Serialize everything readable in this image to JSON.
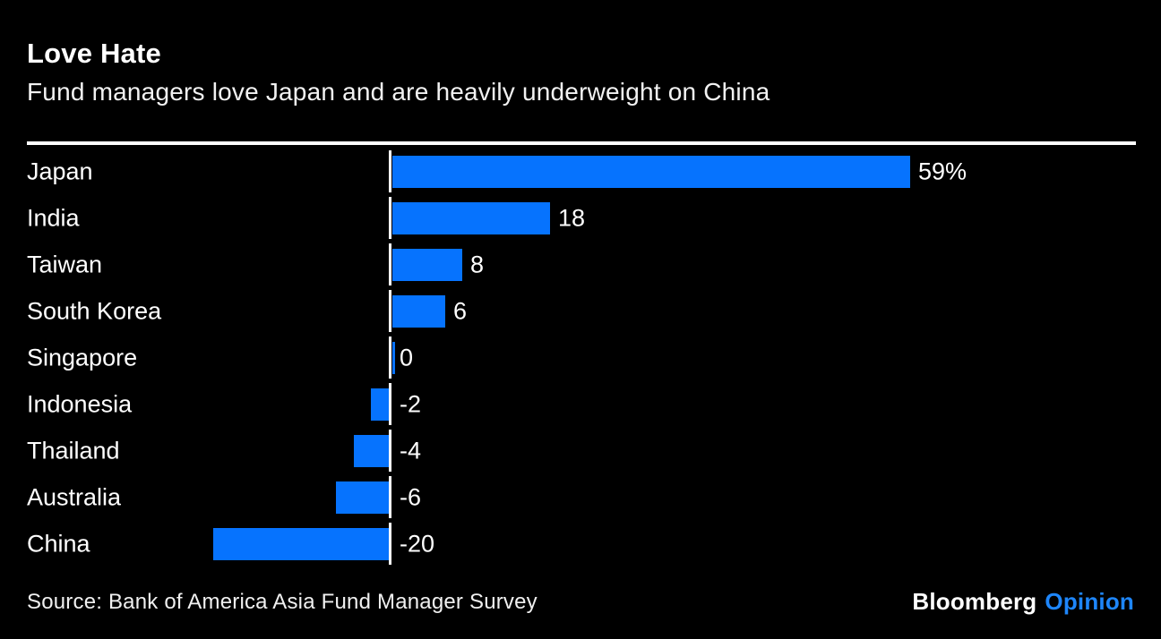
{
  "page": {
    "title": "Love Hate",
    "subtitle": "Fund managers love Japan and are heavily underweight on China",
    "source": "Source: Bank of America Asia Fund Manager Survey",
    "brand": {
      "name": "Bloomberg",
      "edition": "Opinion"
    }
  },
  "colors": {
    "background": "#000000",
    "bar": "#0673fe",
    "axis": "#ffffff",
    "text": "#ffffff",
    "brand_edition": "#1e86fa"
  },
  "chart_data": {
    "type": "bar",
    "orientation": "horizontal",
    "title": "Love Hate",
    "subtitle": "Fund managers love Japan and are heavily underweight on China",
    "categories": [
      "Japan",
      "India",
      "Taiwan",
      "South Korea",
      "Singapore",
      "Indonesia",
      "Thailand",
      "Australia",
      "China"
    ],
    "values": [
      59,
      18,
      8,
      6,
      0,
      -2,
      -4,
      -6,
      -20
    ],
    "value_labels": [
      "59%",
      "18",
      "8",
      "6",
      "0",
      "-2",
      "-4",
      "-6",
      "-20"
    ],
    "unit": "percent overweight/underweight",
    "xlim": [
      -22,
      62
    ],
    "grid": false,
    "legend": false,
    "zero_axis": true
  }
}
